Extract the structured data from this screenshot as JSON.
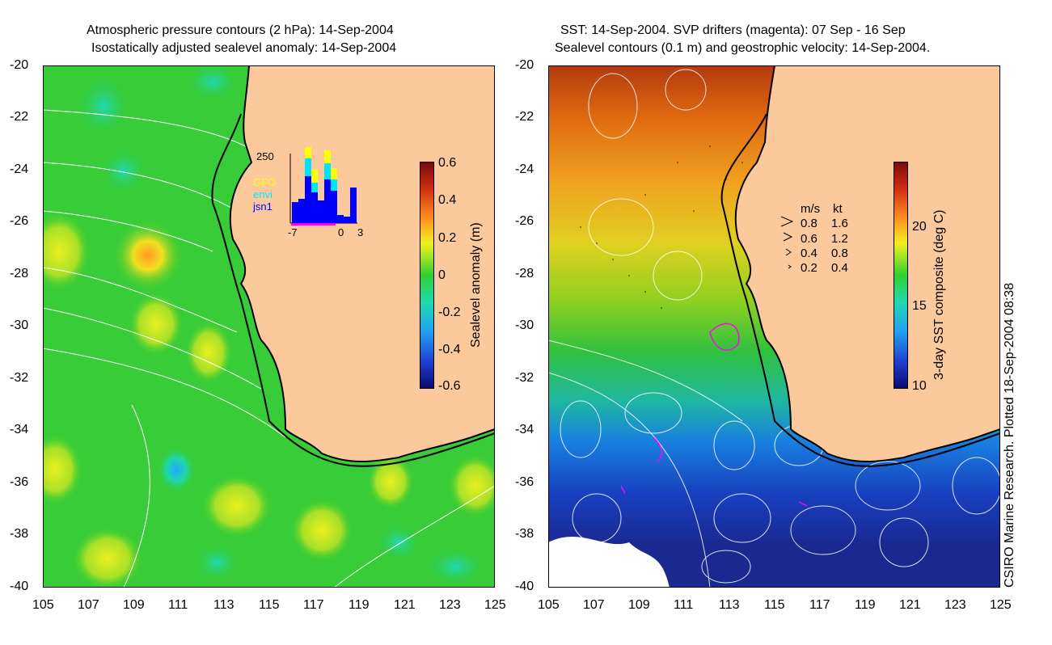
{
  "left_panel": {
    "title_line1": "Atmospheric pressure contours (2 hPa): 14-Sep-2004",
    "title_line2": "Isostatically adjusted sealevel anomaly: 14-Sep-2004",
    "y_ticks": [
      "-20",
      "-22",
      "-24",
      "-26",
      "-28",
      "-30",
      "-32",
      "-34",
      "-36",
      "-38",
      "-40"
    ],
    "x_ticks": [
      "105",
      "107",
      "109",
      "111",
      "113",
      "115",
      "117",
      "119",
      "121",
      "123",
      "125"
    ],
    "colorbar": {
      "label": "Sealevel anomaly (m)",
      "ticks": [
        "0.6",
        "0.4",
        "0.2",
        "0",
        "-0.2",
        "-0.4",
        "-0.6"
      ]
    },
    "inset": {
      "y_label": "250",
      "legend": [
        {
          "name": "GFO",
          "color": "#ffff00"
        },
        {
          "name": "envi",
          "color": "#00e5ff"
        },
        {
          "name": "jsn1",
          "color": "#0000ff"
        }
      ],
      "x_ticks": [
        "-7",
        "0",
        "3"
      ]
    }
  },
  "right_panel": {
    "title_line1": "SST: 14-Sep-2004. SVP drifters (magenta): 07 Sep - 16 Sep",
    "title_line2": "Sealevel contours (0.1 m) and geostrophic velocity: 14-Sep-2004.",
    "y_ticks": [
      "-20",
      "-22",
      "-24",
      "-26",
      "-28",
      "-30",
      "-32",
      "-34",
      "-36",
      "-38",
      "-40"
    ],
    "x_ticks": [
      "105",
      "107",
      "109",
      "111",
      "113",
      "115",
      "117",
      "119",
      "121",
      "123",
      "125"
    ],
    "colorbar": {
      "label": "3-day SST composite (deg C)",
      "ticks": [
        "20",
        "15",
        "10"
      ]
    },
    "velocity_legend": {
      "header_ms": "m/s",
      "header_kt": "kt",
      "rows": [
        {
          "ms": "0.8",
          "kt": "1.6"
        },
        {
          "ms": "0.6",
          "kt": "1.2"
        },
        {
          "ms": "0.4",
          "kt": "0.8"
        },
        {
          "ms": "0.2",
          "kt": "0.4"
        }
      ]
    }
  },
  "credit": "CSIRO Marine Research. Plotted 18-Sep-2004 08:38",
  "colors": {
    "land": "#fcc99d",
    "ocean_green": "#2fcc2f",
    "magenta": "#ff00ff"
  }
}
